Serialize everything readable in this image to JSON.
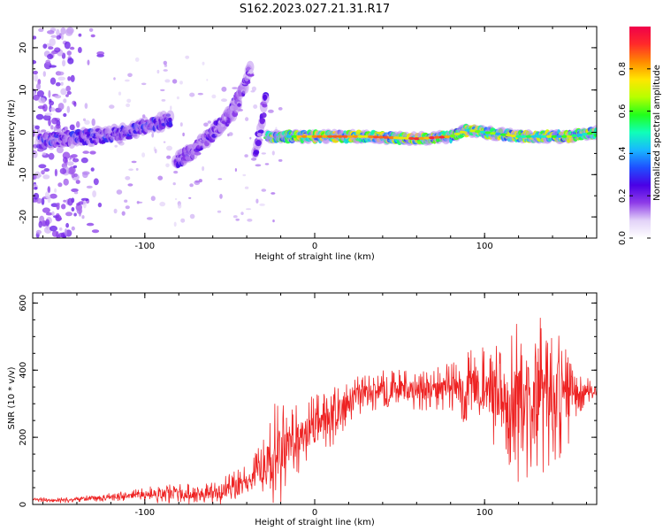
{
  "figure": {
    "title": "S162.2023.027.21.31.R17"
  },
  "chart_data": [
    {
      "type": "heatmap",
      "xlabel": "Height of straight line (km)",
      "ylabel": "Frequency (Hz)",
      "xlim": [
        -166,
        166
      ],
      "ylim": [
        -25,
        25
      ],
      "xticks": [
        "-100",
        "0",
        "100"
      ],
      "yticks": [
        "-20",
        "-10",
        "0",
        "10",
        "20"
      ],
      "colorbar": {
        "label": "Normalized spectral amplitude",
        "range": [
          0,
          1
        ],
        "ticks": [
          "0.0",
          "0.2",
          "0.4",
          "0.6",
          "0.8"
        ],
        "colors": [
          "#ffffff",
          "#e2d2f8",
          "#8e3ce8",
          "#4a00e6",
          "#1f4fff",
          "#18b8ff",
          "#10ffb8",
          "#22ff1a",
          "#b8ff00",
          "#ffe600",
          "#ff8a00",
          "#ff2a2a",
          "#f0004a"
        ]
      },
      "features": [
        {
          "name": "scatter",
          "x_range": [
            -166,
            -120
          ],
          "freq_range": [
            -25,
            25
          ],
          "amplitude": 0.08
        },
        {
          "name": "band_a",
          "x": [
            -162,
            -130,
            -110,
            -95,
            -85
          ],
          "freq": [
            -2,
            -1,
            0,
            2,
            3
          ],
          "amplitude": 0.35
        },
        {
          "name": "band_b",
          "x": [
            -82,
            -70,
            -60,
            -50,
            -45
          ],
          "freq": [
            -7,
            -4,
            0,
            4,
            8
          ],
          "amplitude": 0.3
        },
        {
          "name": "band_c",
          "x": [
            -55,
            -48,
            -42,
            -38
          ],
          "freq": [
            2,
            5,
            10,
            15
          ],
          "amplitude": 0.25
        },
        {
          "name": "band_d",
          "x": [
            -35,
            -32,
            -29
          ],
          "freq": [
            -5,
            0,
            8
          ],
          "amplitude": 0.3
        },
        {
          "name": "main_line",
          "x": [
            -28,
            0,
            30,
            60,
            80,
            90,
            120,
            150,
            166
          ],
          "freq": [
            -1,
            -1,
            -1,
            -1.5,
            -1,
            0.5,
            -1,
            -1,
            0
          ],
          "amplitude": 0.85
        }
      ]
    },
    {
      "type": "line",
      "xlabel": "Height of straight line (km)",
      "ylabel": "SNR (10 * v/v)",
      "xlim": [
        -166,
        166
      ],
      "ylim": [
        0,
        630
      ],
      "xticks": [
        "-100",
        "0",
        "100"
      ],
      "yticks": [
        "0",
        "200",
        "400",
        "600"
      ],
      "color": "#ee2222",
      "series": [
        {
          "x": [
            -166,
            -150,
            -130,
            -110,
            -90,
            -70,
            -60,
            -50,
            -40,
            -30,
            -25,
            -20,
            -15,
            -10,
            -5,
            0,
            5,
            10,
            15,
            20,
            25,
            30,
            40,
            50,
            60,
            70,
            80,
            90,
            100,
            110,
            115,
            120,
            125,
            130,
            135,
            140,
            145,
            150,
            155,
            160,
            166
          ],
          "y": [
            15,
            12,
            18,
            25,
            30,
            32,
            35,
            45,
            70,
            110,
            120,
            150,
            170,
            190,
            210,
            230,
            240,
            260,
            280,
            300,
            320,
            330,
            340,
            345,
            335,
            340,
            350,
            345,
            340,
            330,
            310,
            300,
            310,
            320,
            330,
            320,
            330,
            340,
            330,
            340,
            345
          ],
          "envelope": [
            6,
            8,
            10,
            15,
            30,
            30,
            40,
            45,
            50,
            90,
            180,
            170,
            110,
            110,
            90,
            120,
            90,
            90,
            70,
            60,
            60,
            55,
            60,
            60,
            55,
            70,
            70,
            120,
            130,
            180,
            220,
            250,
            240,
            260,
            240,
            220,
            200,
            160,
            70,
            40,
            25
          ]
        }
      ]
    }
  ]
}
